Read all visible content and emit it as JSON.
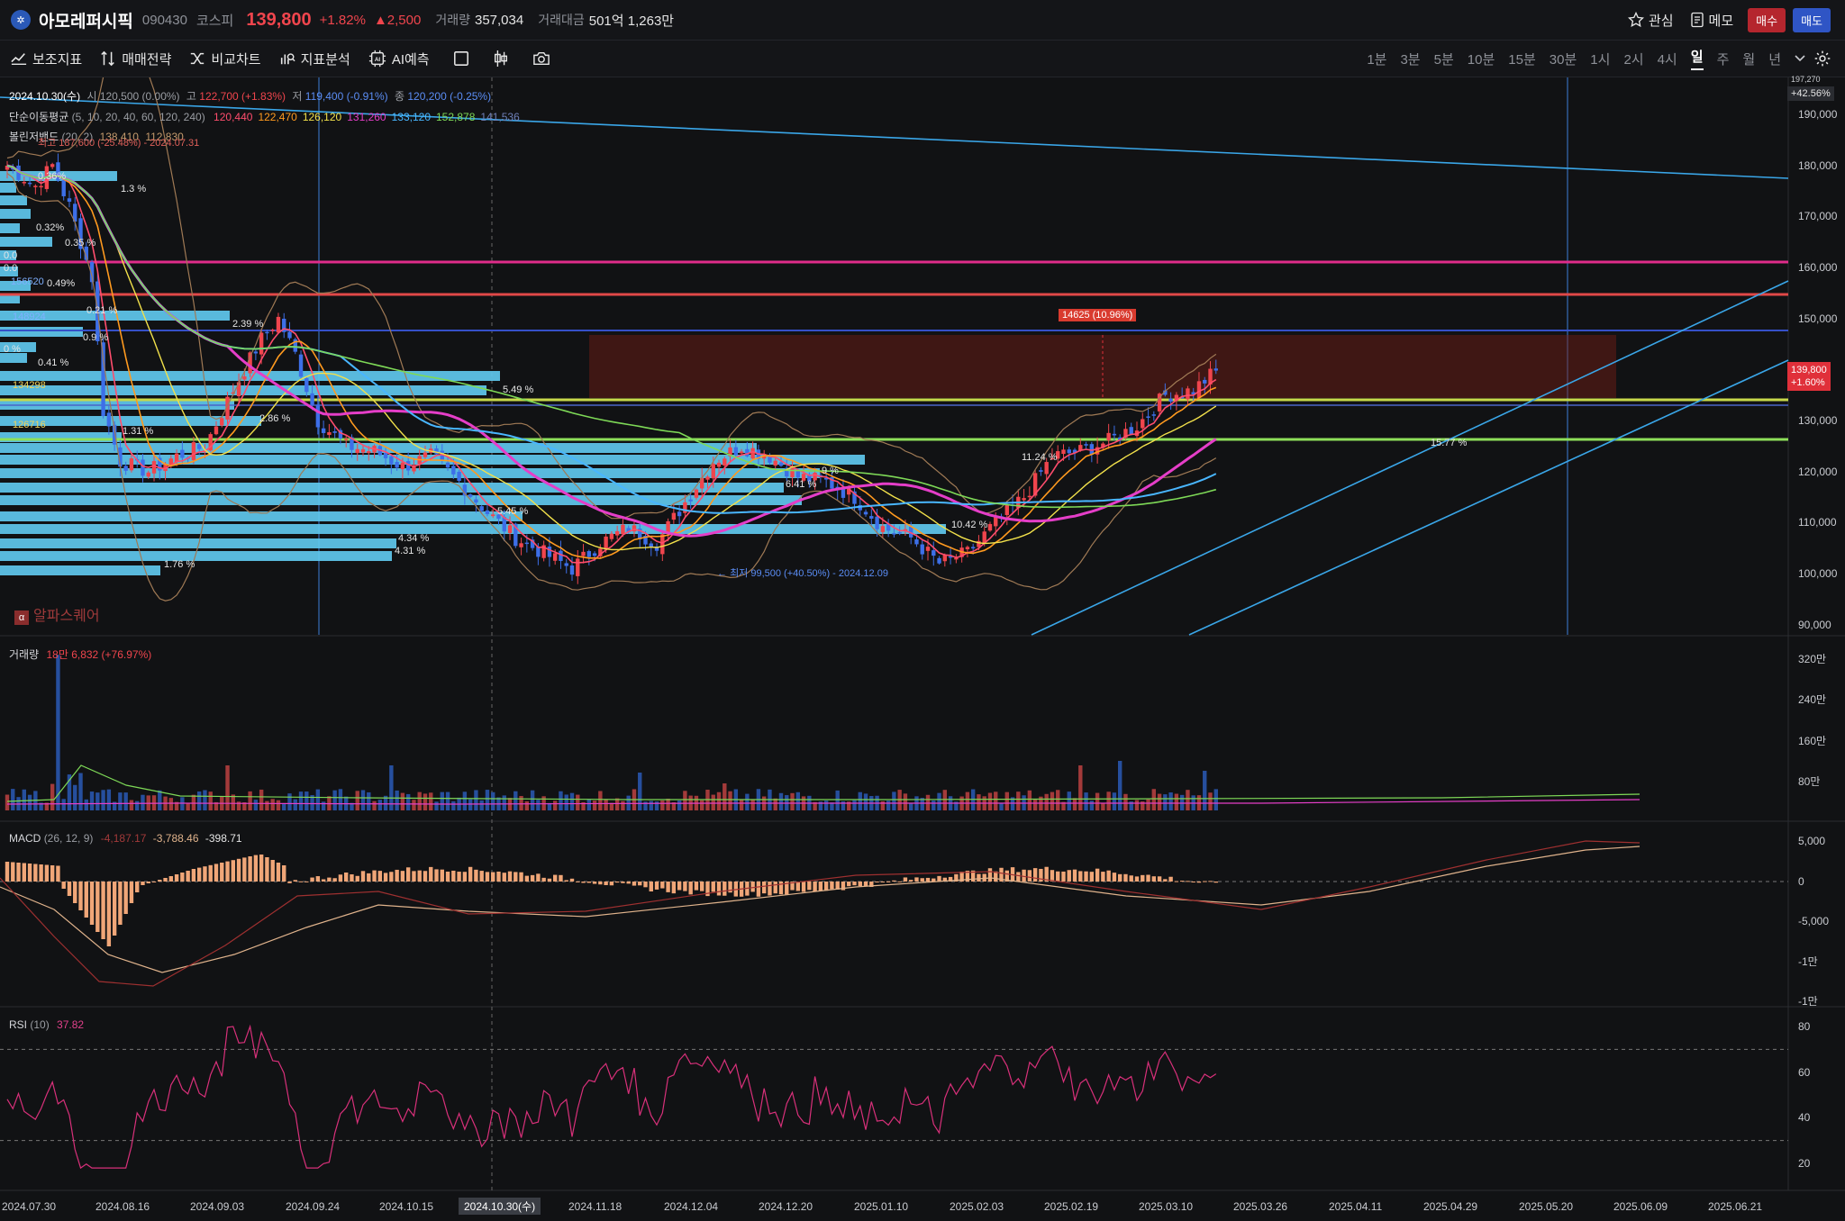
{
  "header": {
    "logo_glyph": "✲",
    "stock_name": "아모레퍼시픽",
    "stock_code": "090430",
    "market": "코스피",
    "price": "139,800",
    "change_pct": "+1.82%",
    "change_abs": "▲2,500",
    "volume_label": "거래량",
    "volume_value": "357,034",
    "turnover_label": "거래대금",
    "turnover_value": "501억 1,263만",
    "watch_label": "관심",
    "memo_label": "메모",
    "buy_label": "매수",
    "sell_label": "매도"
  },
  "toolbar": {
    "indicators_label": "보조지표",
    "strategy_label": "매매전략",
    "compare_label": "비교차트",
    "analysis_label": "지표분석",
    "ai_label": "AI예측",
    "timeframes": [
      "1분",
      "3분",
      "5분",
      "10분",
      "15분",
      "30분",
      "1시",
      "2시",
      "4시",
      "일",
      "주",
      "월",
      "년"
    ],
    "active_timeframe": "일"
  },
  "legend": {
    "ohlc_date": "2024.10.30(수)",
    "ohlc_open_label": "시",
    "ohlc_open": "120,500 (0.00%)",
    "ohlc_high_label": "고",
    "ohlc_high": "122,700 (+1.83%)",
    "ohlc_low_label": "저",
    "ohlc_low": "119,400 (-0.91%)",
    "ohlc_close_label": "종",
    "ohlc_close": "120,200 (-0.25%)",
    "ma_label": "단순이동평균",
    "ma_params": "(5, 10, 20, 40, 60, 120, 240)",
    "ma_values": [
      {
        "value": "120,440",
        "color": "#ff4d6d"
      },
      {
        "value": "122,470",
        "color": "#ff9a1f"
      },
      {
        "value": "126,120",
        "color": "#f2e14b"
      },
      {
        "value": "131,260",
        "color": "#e53ec8"
      },
      {
        "value": "133,120",
        "color": "#49b6ff"
      },
      {
        "value": "152,878",
        "color": "#7ed957"
      },
      {
        "value": "141,536",
        "color": "#6e7fb8"
      }
    ],
    "bb_label": "볼린저밴드",
    "bb_params": "(20, 2)",
    "bb_values": [
      "138,410",
      "112,830"
    ],
    "high_note": "최고 187,600 (-25.48%) - 2024.07.31",
    "low_note": "최저 99,500 (+40.50%) - 2024.12.09",
    "watermark": "알파스퀘어",
    "range_box_label": "14625 (10.96%)"
  },
  "price_axis": {
    "ticks": [
      "190,000",
      "180,000",
      "170,000",
      "160,000",
      "150,000",
      "140,000",
      "130,000",
      "120,000",
      "110,000",
      "100,000",
      "90,000"
    ],
    "top_pct": "+42.56%",
    "top_partial": "197,270",
    "current_price": "139,800",
    "current_pct": "+1.60%"
  },
  "volume_panel": {
    "title": "거래량",
    "value": "18만 6,832 (+76.97%)",
    "ticks": [
      "320만",
      "240만",
      "160만",
      "80만"
    ]
  },
  "macd_panel": {
    "title": "MACD",
    "params": "(26, 12, 9)",
    "v1": "-4,187.17",
    "v2": "-3,788.46",
    "v3": "-398.71",
    "ticks": [
      "5,000",
      "0",
      "-5,000",
      "-1만",
      "-1만"
    ]
  },
  "rsi_panel": {
    "title": "RSI",
    "params": "(10)",
    "value": "37.82",
    "ticks": [
      "80",
      "60",
      "40",
      "20"
    ]
  },
  "volume_profile": [
    {
      "label": "0.36%"
    },
    {
      "label": "1.3 %"
    },
    {
      "label": "0.32%"
    },
    {
      "label": "0.35 %"
    },
    {
      "label": "0.0"
    },
    {
      "label": "0.49%"
    },
    {
      "label": "0.0"
    },
    {
      "label": "0.21 %"
    },
    {
      "label": "2.39 %"
    },
    {
      "label": "0.9 %"
    },
    {
      "label": "0.41 %"
    },
    {
      "label": "0 %"
    },
    {
      "label": "5.49 %"
    },
    {
      "label": "2.86 %"
    },
    {
      "label": "1.31 %"
    },
    {
      "label": "9 %"
    },
    {
      "label": "6.41 %"
    },
    {
      "label": "5.45 %"
    },
    {
      "label": "10.42 %"
    },
    {
      "label": "4.34 %"
    },
    {
      "label": "4.31 %"
    },
    {
      "label": "1.76 %"
    },
    {
      "label": "11.24 %"
    },
    {
      "label": "15.77 %"
    }
  ],
  "level_labels": [
    "156520",
    "148924",
    "134298",
    "126716"
  ],
  "x_axis": {
    "dates": [
      "2024.07.30",
      "2024.08.16",
      "2024.09.03",
      "2024.09.24",
      "2024.10.15",
      "2024.10.30(수)",
      "2024.11.18",
      "2024.12.04",
      "2024.12.20",
      "2025.01.10",
      "2025.02.03",
      "2025.02.19",
      "2025.03.10",
      "2025.03.26",
      "2025.04.11",
      "2025.04.29",
      "2025.05.20",
      "2025.06.09",
      "2025.06.21"
    ]
  },
  "chart_data": {
    "type": "candlestick",
    "price_range": [
      88000,
      197270
    ],
    "candle_count": 215,
    "anchors": [
      [
        0,
        180000
      ],
      [
        5,
        176000
      ],
      [
        8,
        180000
      ],
      [
        11,
        172000
      ],
      [
        15,
        158000
      ],
      [
        17,
        132000
      ],
      [
        20,
        122000
      ],
      [
        25,
        120000
      ],
      [
        30,
        123000
      ],
      [
        35,
        125000
      ],
      [
        40,
        136000
      ],
      [
        45,
        146000
      ],
      [
        48,
        150000
      ],
      [
        51,
        143000
      ],
      [
        55,
        130000
      ],
      [
        60,
        125000
      ],
      [
        65,
        124000
      ],
      [
        70,
        121000
      ],
      [
        75,
        123000
      ],
      [
        80,
        118000
      ],
      [
        85,
        112000
      ],
      [
        90,
        107000
      ],
      [
        95,
        104000
      ],
      [
        100,
        101000
      ],
      [
        105,
        106000
      ],
      [
        110,
        109000
      ],
      [
        115,
        106000
      ],
      [
        120,
        114000
      ],
      [
        125,
        122000
      ],
      [
        130,
        125000
      ],
      [
        135,
        123000
      ],
      [
        140,
        119000
      ],
      [
        145,
        118000
      ],
      [
        150,
        115000
      ],
      [
        155,
        109000
      ],
      [
        160,
        107000
      ],
      [
        165,
        102000
      ],
      [
        170,
        104000
      ],
      [
        175,
        110000
      ],
      [
        180,
        115000
      ],
      [
        185,
        123000
      ],
      [
        190,
        124000
      ],
      [
        195,
        126000
      ],
      [
        200,
        129000
      ],
      [
        205,
        135000
      ],
      [
        210,
        136000
      ],
      [
        214,
        139800
      ]
    ]
  }
}
